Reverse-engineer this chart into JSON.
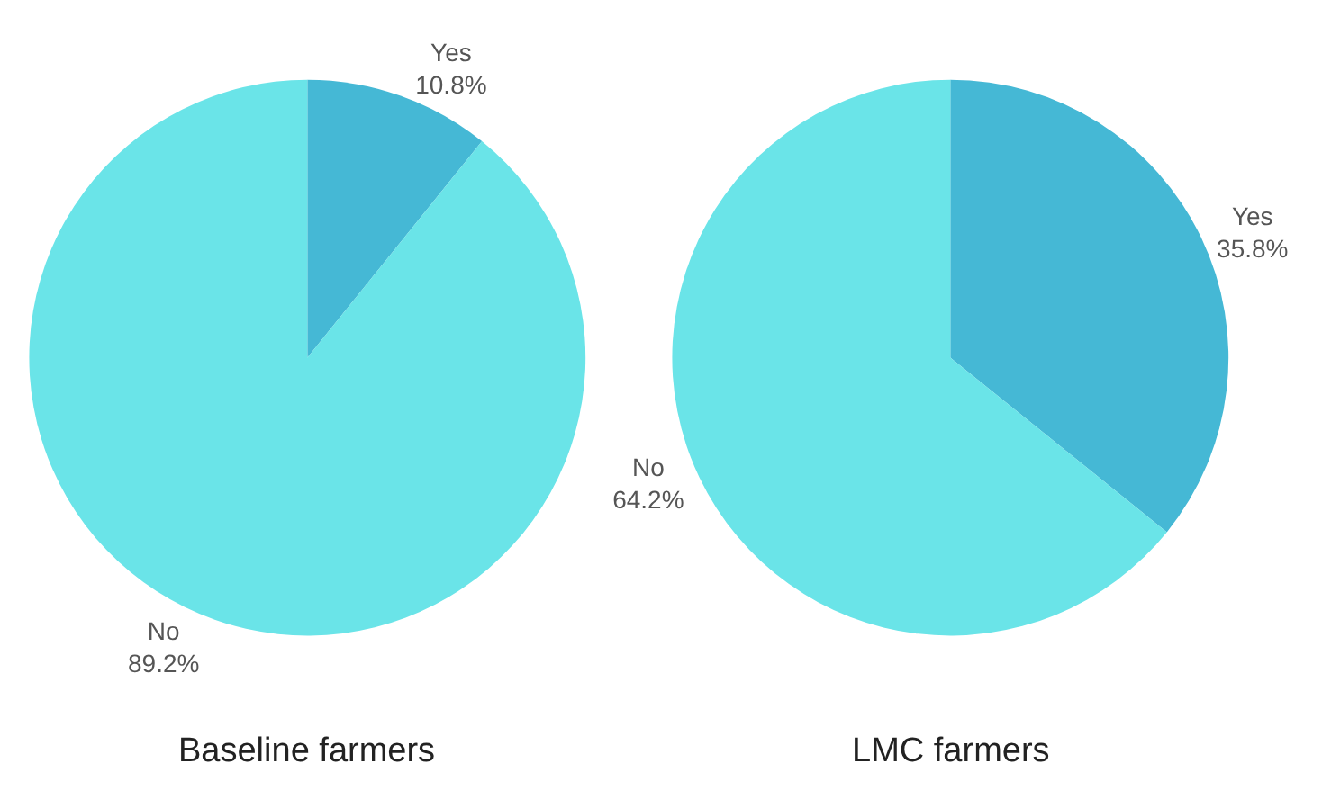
{
  "chart_data": [
    {
      "type": "pie",
      "title": "Baseline farmers",
      "categories": [
        "Yes",
        "No"
      ],
      "values": [
        10.8,
        89.2
      ],
      "colors": [
        "#45b8d5",
        "#6ae4e8"
      ],
      "value_labels": [
        "10.8%",
        "89.2%"
      ],
      "legend": false
    },
    {
      "type": "pie",
      "title": "LMC farmers",
      "categories": [
        "Yes",
        "No"
      ],
      "values": [
        35.8,
        64.2
      ],
      "colors": [
        "#45b8d5",
        "#6ae4e8"
      ],
      "value_labels": [
        "35.8%",
        "64.2%"
      ],
      "legend": false
    }
  ]
}
